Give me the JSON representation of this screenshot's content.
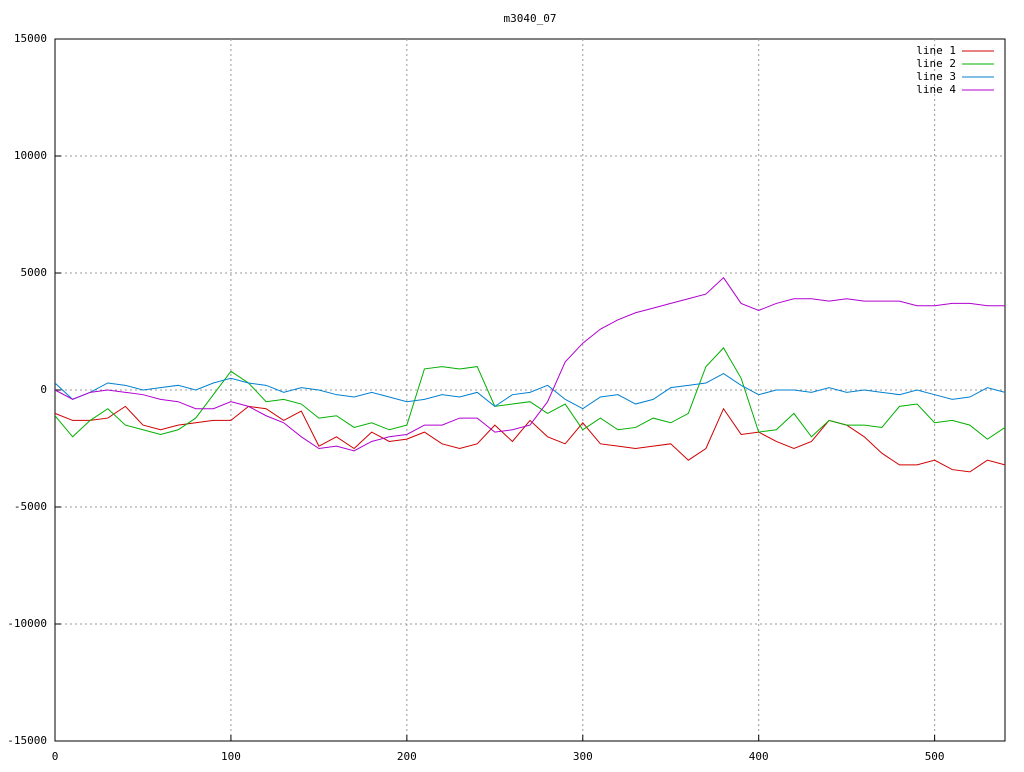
{
  "chart_data": {
    "type": "line",
    "title": "m3040_07",
    "x": [
      0,
      10,
      20,
      30,
      40,
      50,
      60,
      70,
      80,
      90,
      100,
      110,
      120,
      130,
      140,
      150,
      160,
      170,
      180,
      190,
      200,
      210,
      220,
      230,
      240,
      250,
      260,
      270,
      280,
      290,
      300,
      310,
      320,
      330,
      340,
      350,
      360,
      370,
      380,
      390,
      400,
      410,
      420,
      430,
      440,
      450,
      460,
      470,
      480,
      490,
      500,
      510,
      520,
      530,
      540
    ],
    "series": [
      {
        "name": "line 1",
        "color": "#d00000",
        "values": [
          -1000,
          -1300,
          -1300,
          -1200,
          -700,
          -1500,
          -1700,
          -1500,
          -1400,
          -1300,
          -1300,
          -700,
          -800,
          -1300,
          -900,
          -2400,
          -2000,
          -2500,
          -1800,
          -2200,
          -2100,
          -1800,
          -2300,
          -2500,
          -2300,
          -1500,
          -2200,
          -1300,
          -2000,
          -2300,
          -1400,
          -2300,
          -2400,
          -2500,
          -2400,
          -2300,
          -3000,
          -2500,
          -800,
          -1900,
          -1800,
          -2200,
          -2500,
          -2200,
          -1300,
          -1500,
          -2000,
          -2700,
          -3200,
          -3200,
          -3000,
          -3400,
          -3500,
          -3000,
          -3200
        ]
      },
      {
        "name": "line 2",
        "color": "#00b000",
        "values": [
          -1100,
          -2000,
          -1300,
          -800,
          -1500,
          -1700,
          -1900,
          -1700,
          -1200,
          -200,
          800,
          300,
          -500,
          -400,
          -600,
          -1200,
          -1100,
          -1600,
          -1400,
          -1700,
          -1500,
          900,
          1000,
          900,
          1000,
          -700,
          -600,
          -500,
          -1000,
          -600,
          -1700,
          -1200,
          -1700,
          -1600,
          -1200,
          -1400,
          -1000,
          1000,
          1800,
          500,
          -1800,
          -1700,
          -1000,
          -2000,
          -1300,
          -1500,
          -1500,
          -1600,
          -700,
          -600,
          -1400,
          -1300,
          -1500,
          -2100,
          -1600
        ]
      },
      {
        "name": "line 3",
        "color": "#0080d0",
        "values": [
          300,
          -400,
          -100,
          300,
          200,
          0,
          100,
          200,
          0,
          300,
          500,
          300,
          200,
          -100,
          100,
          0,
          -200,
          -300,
          -100,
          -300,
          -500,
          -400,
          -200,
          -300,
          -100,
          -700,
          -200,
          -100,
          200,
          -400,
          -800,
          -300,
          -200,
          -600,
          -400,
          100,
          200,
          300,
          700,
          200,
          -200,
          0,
          0,
          -100,
          100,
          -100,
          0,
          -100,
          -200,
          0,
          -200,
          -400,
          -300,
          100,
          -100
        ]
      },
      {
        "name": "line 4",
        "color": "#b000d0",
        "values": [
          0,
          -400,
          -100,
          0,
          -100,
          -200,
          -400,
          -500,
          -800,
          -800,
          -500,
          -700,
          -1100,
          -1400,
          -2000,
          -2500,
          -2400,
          -2600,
          -2200,
          -2000,
          -1900,
          -1500,
          -1500,
          -1200,
          -1200,
          -1800,
          -1700,
          -1500,
          -500,
          1200,
          2000,
          2600,
          3000,
          3300,
          3500,
          3700,
          3900,
          4100,
          4800,
          3700,
          3400,
          3700,
          3900,
          3900,
          3800,
          3900,
          3800,
          3800,
          3800,
          3600,
          3600,
          3700,
          3700,
          3600,
          3600
        ]
      }
    ],
    "xlim": [
      0,
      540
    ],
    "xticks": [
      0,
      100,
      200,
      300,
      400,
      500
    ],
    "ylim": [
      -15000,
      15000
    ],
    "yticks": [
      -15000,
      -10000,
      -5000,
      0,
      5000,
      10000,
      15000
    ],
    "grid": true,
    "legend": "top-right"
  }
}
